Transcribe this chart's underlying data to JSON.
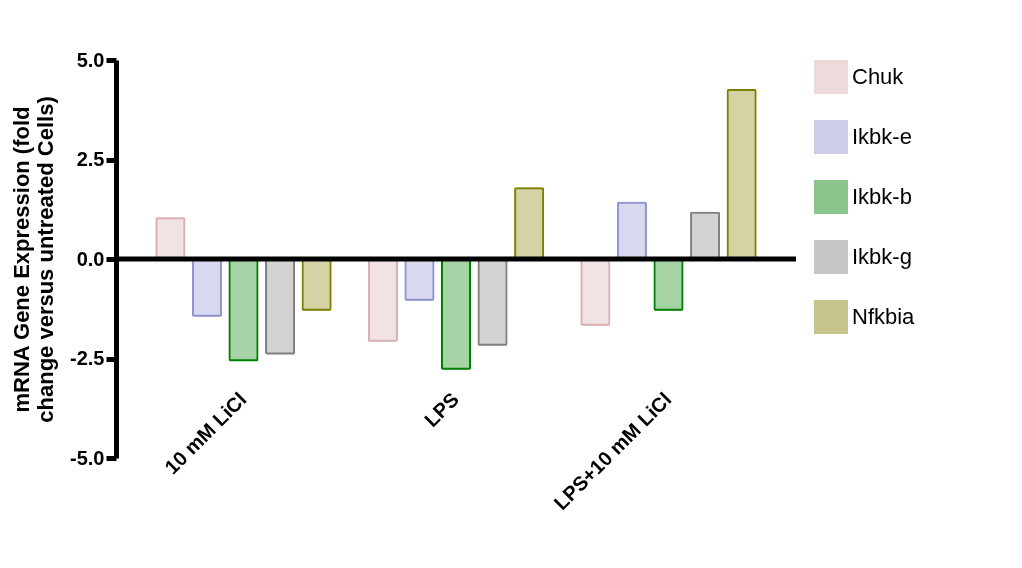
{
  "chart_data": {
    "type": "bar",
    "ylabel": "mRNA Gene Expression (fold change versus untreated Cells)",
    "categories": [
      "10 mM LiCl",
      "LPS",
      "LPS+10 mM LiCl"
    ],
    "series": [
      {
        "name": "Chuk",
        "color": "#d8aeae",
        "values": [
          1.05,
          -2.08,
          -1.68
        ]
      },
      {
        "name": "Ikbk-e",
        "color": "#8f93d0",
        "values": [
          -1.45,
          -1.05,
          1.44
        ]
      },
      {
        "name": "Ikbk-b",
        "color": "#008000",
        "values": [
          -2.57,
          -2.78,
          -1.3
        ]
      },
      {
        "name": "Ikbk-g",
        "color": "#808080",
        "values": [
          -2.4,
          -2.18,
          1.19
        ]
      },
      {
        "name": "Nfkbia",
        "color": "#808000",
        "values": [
          -1.3,
          1.8,
          4.27
        ]
      }
    ],
    "ylim": [
      -5,
      5
    ],
    "yticks": [
      {
        "value": -5,
        "label": "-5.0"
      },
      {
        "value": -2.5,
        "label": "-2.5"
      },
      {
        "value": 0,
        "label": "0.0"
      },
      {
        "value": 2.5,
        "label": "2.5"
      },
      {
        "value": 5,
        "label": "5.0"
      }
    ],
    "ref_lines": [
      {
        "axis": "y",
        "value": 0
      }
    ],
    "grid": false,
    "legend": "top right"
  }
}
